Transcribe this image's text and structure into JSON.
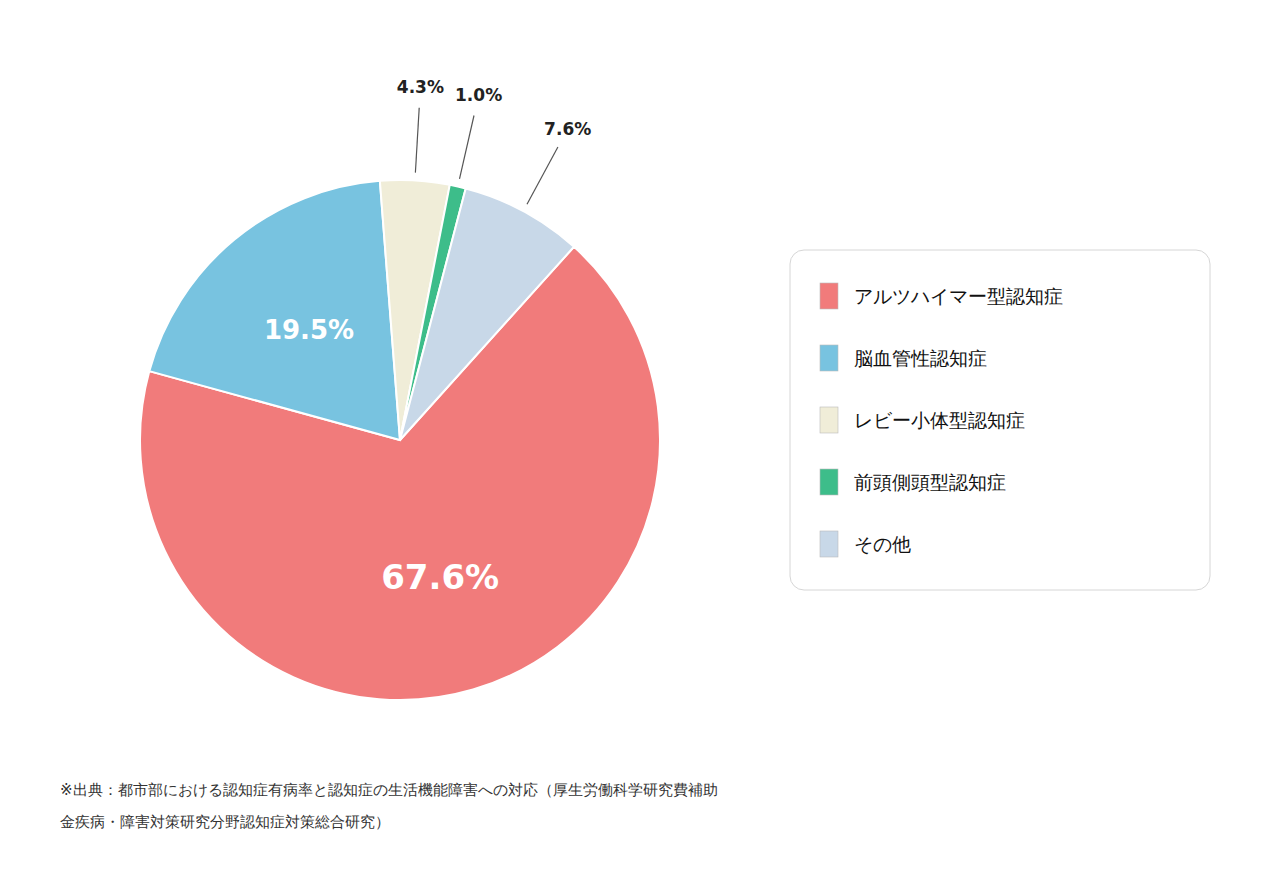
{
  "chart_data": {
    "type": "pie",
    "categories": [
      "アルツハイマー型認知症",
      "脳血管性認知症",
      "レビー小体型認知症",
      "前頭側頭型認知症",
      "その他"
    ],
    "values": [
      67.6,
      19.5,
      4.3,
      1.0,
      7.6
    ],
    "value_labels": [
      "67.6%",
      "19.5%",
      "4.3%",
      "1.0%",
      "7.6%"
    ],
    "colors": [
      "#F17B7B",
      "#78C3E0",
      "#F0EDD8",
      "#3DBD8A",
      "#C8D8E8"
    ],
    "data_labels": true,
    "annotations": [
      "※出典：都市部における認知症有病率と認知症の生活機能障害への対応（厚生労働科学研究費補助",
      "金疾病・障害対策研究分野認知症対策総合研究）"
    ]
  }
}
